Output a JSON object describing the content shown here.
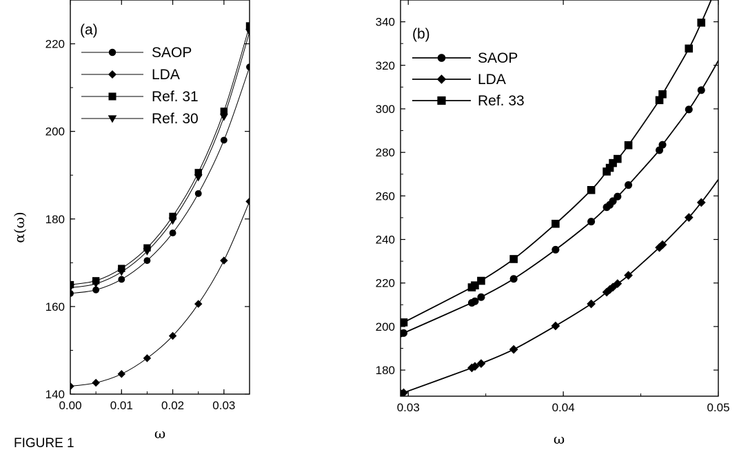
{
  "figure_caption": "FIGURE 1",
  "chart_data": [
    {
      "type": "line",
      "panel_label": "(a)",
      "xlabel": "ω",
      "ylabel": "α(ω)",
      "xlim": [
        0.0,
        0.035
      ],
      "ylim": [
        140,
        230
      ],
      "xticks": [
        0.0,
        0.01,
        0.02,
        0.03
      ],
      "xtick_labels": [
        "0.00",
        "0.01",
        "0.02",
        "0.03"
      ],
      "yticks": [
        140,
        160,
        180,
        200,
        220
      ],
      "ytick_labels": [
        "140",
        "160",
        "180",
        "200",
        "220"
      ],
      "legend_position": "top-left",
      "series": [
        {
          "name": "SAOP",
          "marker": "circle",
          "x": [
            0.0,
            0.005,
            0.01,
            0.015,
            0.02,
            0.025,
            0.03,
            0.035
          ],
          "y": [
            163.0,
            163.8,
            166.2,
            170.5,
            176.8,
            185.8,
            198.0,
            214.7
          ]
        },
        {
          "name": "LDA",
          "marker": "diamond",
          "x": [
            0.0,
            0.005,
            0.01,
            0.015,
            0.02,
            0.025,
            0.03,
            0.035
          ],
          "y": [
            141.8,
            142.6,
            144.6,
            148.2,
            153.3,
            160.6,
            170.5,
            184.0
          ]
        },
        {
          "name": "Ref. 31",
          "marker": "square",
          "x": [
            0.0,
            0.005,
            0.01,
            0.015,
            0.02,
            0.025,
            0.03,
            0.035
          ],
          "y": [
            165.0,
            165.9,
            168.7,
            173.4,
            180.6,
            190.6,
            204.6,
            224.1
          ]
        },
        {
          "name": "Ref. 30",
          "marker": "triangle-down",
          "x": [
            0.0,
            0.005,
            0.01,
            0.015,
            0.02,
            0.025,
            0.03,
            0.035
          ],
          "y": [
            164.3,
            165.2,
            167.9,
            172.6,
            179.6,
            189.5,
            203.3,
            222.7
          ]
        }
      ]
    },
    {
      "type": "line",
      "panel_label": "(b)",
      "xlabel": "ω",
      "ylabel": "",
      "xlim": [
        0.0295,
        0.05
      ],
      "ylim": [
        168,
        350
      ],
      "xticks": [
        0.03,
        0.04,
        0.05
      ],
      "xtick_labels": [
        "0.03",
        "0.04",
        "0.05"
      ],
      "yticks": [
        180,
        200,
        220,
        240,
        260,
        280,
        300,
        320,
        340
      ],
      "ytick_labels": [
        "180",
        "200",
        "220",
        "240",
        "260",
        "280",
        "300",
        "320",
        "340"
      ],
      "legend_position": "top-left",
      "series": [
        {
          "name": "SAOP",
          "marker": "circle",
          "x": [
            0.0295,
            0.0297,
            0.0341,
            0.0343,
            0.0347,
            0.0368,
            0.0395,
            0.0418,
            0.0428,
            0.043,
            0.0432,
            0.0435,
            0.0442,
            0.0462,
            0.0464,
            0.0481,
            0.0489
          ],
          "y": [
            196.8,
            197.0,
            210.9,
            211.6,
            213.5,
            221.9,
            235.3,
            248.2,
            254.8,
            255.9,
            257.6,
            259.7,
            265.0,
            281.0,
            283.5,
            299.7,
            308.6
          ]
        },
        {
          "name": "LDA",
          "marker": "diamond",
          "x": [
            0.0295,
            0.0297,
            0.0341,
            0.0343,
            0.0347,
            0.0368,
            0.0395,
            0.0418,
            0.0428,
            0.043,
            0.0432,
            0.0435,
            0.0442,
            0.0462,
            0.0464,
            0.0481,
            0.0489
          ],
          "y": [
            169.3,
            169.6,
            181.0,
            181.7,
            183.0,
            189.5,
            200.3,
            210.4,
            215.8,
            217.0,
            218.1,
            219.7,
            223.5,
            236.3,
            237.6,
            250.1,
            257.0
          ]
        },
        {
          "name": "Ref. 33",
          "marker": "square",
          "x": [
            0.0295,
            0.0297,
            0.0341,
            0.0343,
            0.0347,
            0.0368,
            0.0395,
            0.0418,
            0.0428,
            0.043,
            0.0432,
            0.0435,
            0.0442,
            0.0462,
            0.0464,
            0.0481,
            0.0489
          ],
          "y": [
            201.7,
            201.9,
            218.0,
            218.9,
            221.0,
            231.0,
            247.2,
            262.7,
            271.2,
            272.9,
            275.1,
            277.0,
            283.3,
            304.0,
            306.7,
            327.7,
            339.6
          ]
        }
      ]
    }
  ]
}
